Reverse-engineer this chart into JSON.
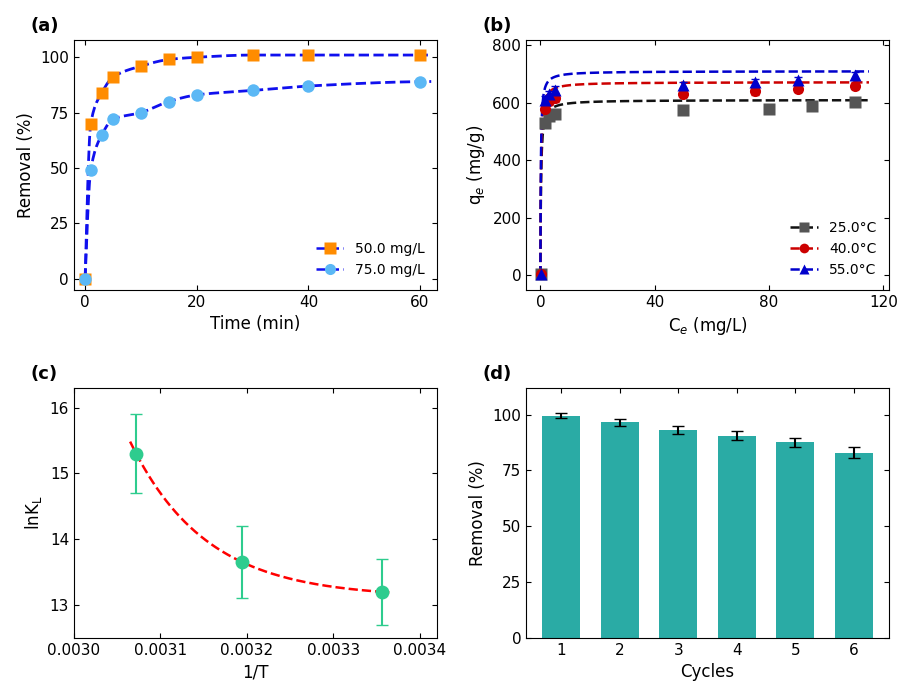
{
  "panel_a": {
    "xlabel": "Time (min)",
    "ylabel": "Removal (%)",
    "series": [
      {
        "label": "50.0 mg/L",
        "x": [
          0,
          1,
          3,
          5,
          10,
          15,
          20,
          30,
          40,
          60
        ],
        "y": [
          0,
          70,
          84,
          91,
          96,
          99,
          100,
          101,
          101,
          101
        ],
        "color": "#FF8C00",
        "marker": "s",
        "markersize": 9
      },
      {
        "label": "75.0 mg/L",
        "x": [
          0,
          1,
          3,
          5,
          10,
          15,
          20,
          30,
          40,
          60
        ],
        "y": [
          0,
          49,
          65,
          72,
          75,
          80,
          83,
          85,
          87,
          89
        ],
        "color": "#5BB8F5",
        "marker": "o",
        "markersize": 9
      }
    ],
    "xlim": [
      -2,
      63
    ],
    "ylim": [
      -5,
      108
    ],
    "xticks": [
      0,
      20,
      40,
      60
    ],
    "yticks": [
      0,
      25,
      50,
      75,
      100
    ],
    "line_color": "#1010EE"
  },
  "panel_b": {
    "xlabel": "C$_e$ (mg/L)",
    "ylabel": "q$_e$ (mg/g)",
    "series": [
      {
        "label": "25.0°C",
        "x": [
          0.3,
          1.5,
          3,
          5,
          50,
          80,
          95,
          110
        ],
        "y": [
          5,
          530,
          555,
          560,
          575,
          580,
          590,
          603
        ],
        "color": "#555555",
        "marker": "s",
        "linecolor": "#111111",
        "markersize": 8,
        "qmax": 610,
        "KL": 5.0
      },
      {
        "label": "40.0°C",
        "x": [
          0.3,
          1.5,
          3,
          5,
          50,
          75,
          90,
          110
        ],
        "y": [
          5,
          580,
          605,
          615,
          632,
          640,
          648,
          660
        ],
        "color": "#CC0000",
        "marker": "o",
        "linecolor": "#CC0000",
        "markersize": 8,
        "qmax": 672,
        "KL": 6.0
      },
      {
        "label": "55.0°C",
        "x": [
          0.3,
          1.5,
          3,
          5,
          50,
          75,
          90,
          110
        ],
        "y": [
          5,
          610,
          630,
          645,
          662,
          672,
          678,
          695
        ],
        "color": "#0000CC",
        "marker": "^",
        "linecolor": "#0000CC",
        "markersize": 8,
        "qmax": 710,
        "KL": 7.0
      }
    ],
    "xlim": [
      -5,
      122
    ],
    "ylim": [
      -50,
      820
    ],
    "xticks": [
      0,
      40,
      80,
      120
    ],
    "yticks": [
      0,
      200,
      400,
      600,
      800
    ]
  },
  "panel_c": {
    "xlabel": "1/T",
    "ylabel": "lnK$_\\mathregular{L}$",
    "x": [
      0.003072,
      0.003195,
      0.003356
    ],
    "y": [
      15.3,
      13.65,
      13.2
    ],
    "yerr": [
      0.6,
      0.55,
      0.5
    ],
    "color": "#2ECC8E",
    "marker": "o",
    "markersize": 10,
    "xlim": [
      0.003,
      0.00342
    ],
    "ylim": [
      12.5,
      16.3
    ],
    "xticks": [
      0.003,
      0.0031,
      0.0032,
      0.0033,
      0.0034
    ],
    "yticks": [
      13,
      14,
      15,
      16
    ]
  },
  "panel_d": {
    "xlabel": "Cycles",
    "ylabel": "Removal (%)",
    "cycles": [
      1,
      2,
      3,
      4,
      5,
      6
    ],
    "values": [
      99.5,
      96.5,
      93.0,
      90.5,
      87.5,
      83.0
    ],
    "yerr": [
      1.0,
      1.5,
      1.8,
      2.0,
      2.0,
      2.5
    ],
    "bar_color": "#2AABA5",
    "ylim": [
      0,
      112
    ],
    "yticks": [
      0,
      25,
      50,
      75,
      100
    ]
  }
}
